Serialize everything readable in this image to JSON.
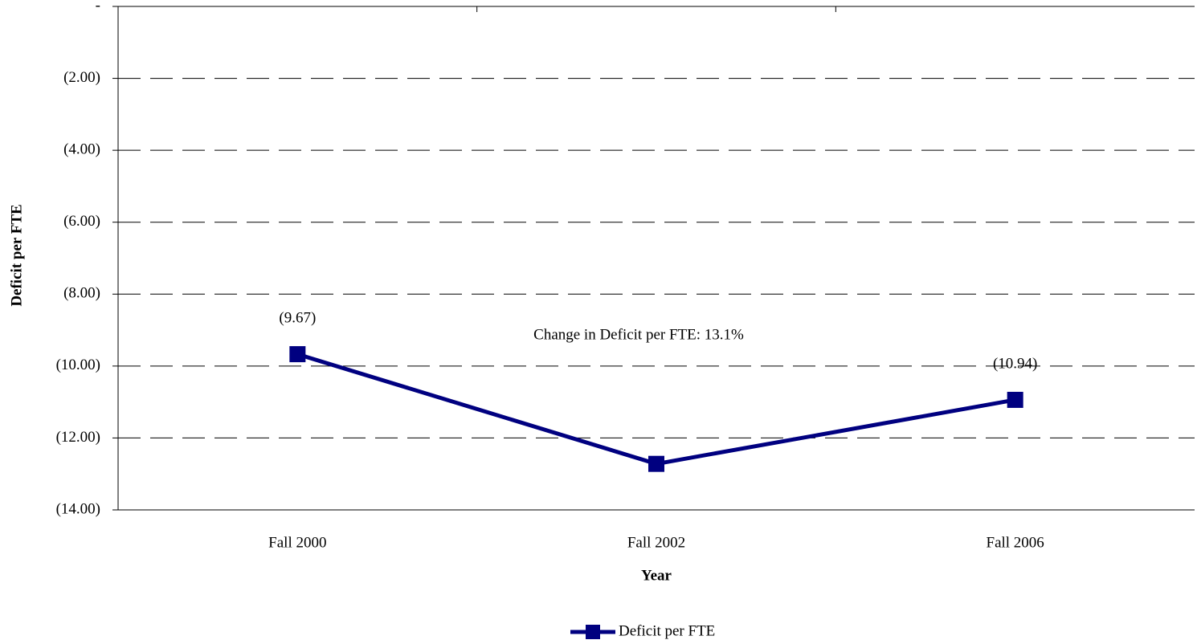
{
  "chart_data": {
    "type": "line",
    "y_label": "Deficit per FTE",
    "x_label": "Year",
    "annotation": "Change in Deficit per FTE: 13.1%",
    "categories": [
      "Fall 2000",
      "Fall 2002",
      "Fall 2006"
    ],
    "series": [
      {
        "name": "Deficit per FTE",
        "color": "#000080",
        "values": [
          -9.67,
          -12.72,
          -10.94
        ],
        "value_labels": [
          "(9.67)",
          null,
          "(10.94)"
        ]
      }
    ],
    "ylim": [
      -14,
      0
    ],
    "yticks": [
      {
        "value": 0,
        "label": "-"
      },
      {
        "value": -2,
        "label": "(2.00)"
      },
      {
        "value": -4,
        "label": "(4.00)"
      },
      {
        "value": -6,
        "label": "(6.00)"
      },
      {
        "value": -8,
        "label": "(8.00)"
      },
      {
        "value": -10,
        "label": "(10.00)"
      },
      {
        "value": -12,
        "label": "(12.00)"
      },
      {
        "value": -14,
        "label": "(14.00)"
      }
    ],
    "grid": true,
    "legend": "bottom"
  }
}
